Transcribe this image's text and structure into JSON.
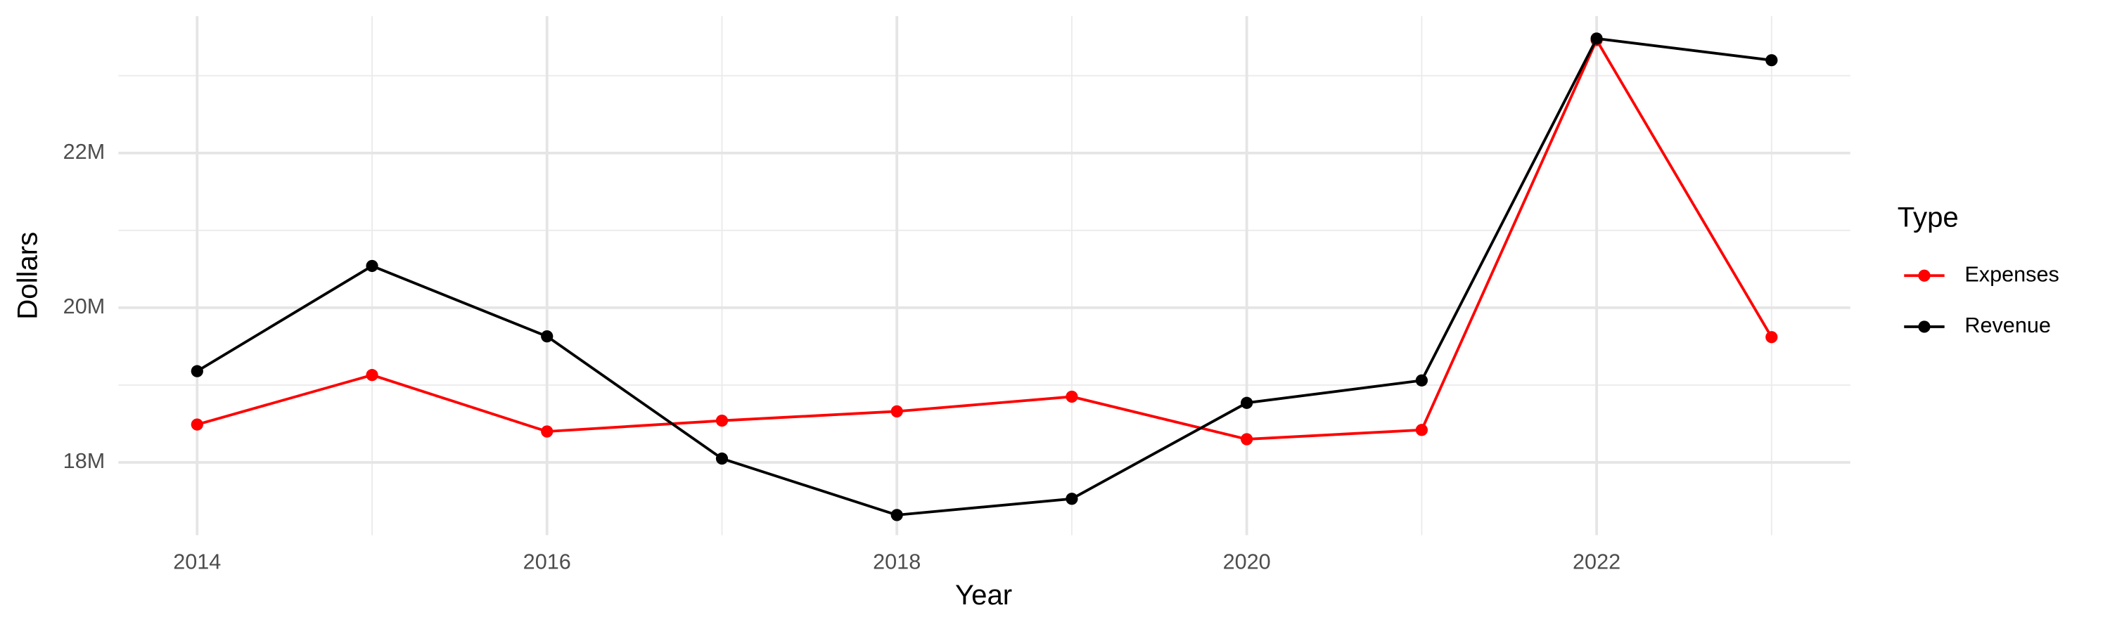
{
  "chart_data": {
    "type": "line",
    "x_label": "Year",
    "y_label": "Dollars",
    "legend_title": "Type",
    "legend_position": "right",
    "x": [
      2014,
      2015,
      2016,
      2017,
      2018,
      2019,
      2020,
      2021,
      2022,
      2023
    ],
    "series": [
      {
        "name": "Expenses",
        "color": "#ff0000",
        "values": [
          18490000,
          19130000,
          18400000,
          18540000,
          18660000,
          18850000,
          18300000,
          18420000,
          23460000,
          19620000
        ]
      },
      {
        "name": "Revenue",
        "color": "#000000",
        "values": [
          19180000,
          20540000,
          19630000,
          18050000,
          17320000,
          17530000,
          18770000,
          19060000,
          23480000,
          23200000
        ]
      }
    ],
    "xlim": [
      2013.55,
      2023.45
    ],
    "xticks": [
      2014,
      2016,
      2018,
      2020,
      2022
    ],
    "ylim": [
      17060000,
      23770000
    ],
    "yticks": [
      {
        "value": 18000000,
        "label": "18M"
      },
      {
        "value": 20000000,
        "label": "20M"
      },
      {
        "value": 22000000,
        "label": "22M"
      }
    ],
    "grid": true
  }
}
